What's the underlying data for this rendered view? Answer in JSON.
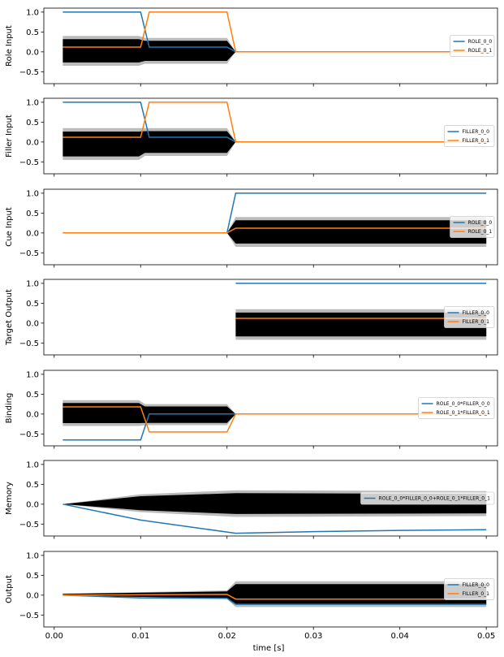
{
  "figure": {
    "xlabel": "time [s]"
  },
  "x_ticks": [
    "0.00",
    "0.01",
    "0.02",
    "0.03",
    "0.04",
    "0.05"
  ],
  "y_ticks": [
    "1.0",
    "0.5",
    "0.0",
    "−0.5"
  ],
  "colors": {
    "series0": "#1f77b4",
    "series1": "#ff7f0e",
    "noise": "#000000",
    "noise_edge": "#bbbbbb"
  },
  "chart_data": [
    {
      "type": "line",
      "ylabel": "Role Input",
      "xlim": [
        -0.0012,
        0.0513
      ],
      "ylim": [
        -0.8,
        1.1
      ],
      "legend": "right",
      "band": [
        {
          "x": 0.001,
          "lo": -0.35,
          "hi": 0.4
        },
        {
          "x": 0.0098,
          "lo": -0.35,
          "hi": 0.4
        },
        {
          "x": 0.0105,
          "lo": -0.3,
          "hi": 0.35
        },
        {
          "x": 0.02,
          "lo": -0.3,
          "hi": 0.35
        },
        {
          "x": 0.021,
          "lo": 0.0,
          "hi": 0.0
        },
        {
          "x": 0.05,
          "lo": 0.0,
          "hi": 0.0
        }
      ],
      "series": [
        {
          "name": "ROLE_0_0",
          "x": [
            0.001,
            0.01,
            0.011,
            0.02,
            0.021,
            0.05
          ],
          "y": [
            1.0,
            1.0,
            0.12,
            0.12,
            0.0,
            0.0
          ]
        },
        {
          "name": "ROLE_0_1",
          "x": [
            0.001,
            0.01,
            0.011,
            0.02,
            0.021,
            0.05
          ],
          "y": [
            0.12,
            0.12,
            1.0,
            1.0,
            0.0,
            0.0
          ]
        }
      ]
    },
    {
      "type": "line",
      "ylabel": "Filler Input",
      "xlim": [
        -0.0012,
        0.0513
      ],
      "ylim": [
        -0.8,
        1.1
      ],
      "legend": "right",
      "band": [
        {
          "x": 0.001,
          "lo": -0.45,
          "hi": 0.35
        },
        {
          "x": 0.0098,
          "lo": -0.45,
          "hi": 0.35
        },
        {
          "x": 0.0105,
          "lo": -0.35,
          "hi": 0.35
        },
        {
          "x": 0.02,
          "lo": -0.35,
          "hi": 0.35
        },
        {
          "x": 0.021,
          "lo": 0.0,
          "hi": 0.0
        },
        {
          "x": 0.05,
          "lo": 0.0,
          "hi": 0.0
        }
      ],
      "series": [
        {
          "name": "FILLER_0_0",
          "x": [
            0.001,
            0.01,
            0.011,
            0.02,
            0.021,
            0.05
          ],
          "y": [
            1.0,
            1.0,
            0.12,
            0.12,
            0.0,
            0.0
          ]
        },
        {
          "name": "FILLER_0_1",
          "x": [
            0.001,
            0.01,
            0.011,
            0.02,
            0.021,
            0.05
          ],
          "y": [
            0.12,
            0.12,
            1.0,
            1.0,
            0.0,
            0.0
          ]
        }
      ]
    },
    {
      "type": "line",
      "ylabel": "Cue Input",
      "xlim": [
        -0.0012,
        0.0513
      ],
      "ylim": [
        -0.8,
        1.1
      ],
      "legend": "right",
      "band": [
        {
          "x": 0.001,
          "lo": 0.0,
          "hi": 0.0
        },
        {
          "x": 0.02,
          "lo": 0.0,
          "hi": 0.0
        },
        {
          "x": 0.021,
          "lo": -0.35,
          "hi": 0.4
        },
        {
          "x": 0.05,
          "lo": -0.35,
          "hi": 0.4
        }
      ],
      "series": [
        {
          "name": "ROLE_0_0",
          "x": [
            0.001,
            0.02,
            0.021,
            0.05
          ],
          "y": [
            0.0,
            0.0,
            1.0,
            1.0
          ]
        },
        {
          "name": "ROLE_0_1",
          "x": [
            0.001,
            0.02,
            0.021,
            0.05
          ],
          "y": [
            0.0,
            0.0,
            0.12,
            0.12
          ]
        }
      ]
    },
    {
      "type": "line",
      "ylabel": "Target Output",
      "xlim": [
        -0.0012,
        0.0513
      ],
      "ylim": [
        -0.8,
        1.1
      ],
      "legend": "right",
      "band": [
        {
          "x": 0.021,
          "lo": -0.42,
          "hi": 0.35
        },
        {
          "x": 0.05,
          "lo": -0.42,
          "hi": 0.35
        }
      ],
      "series": [
        {
          "name": "FILLER_0_0",
          "x": [
            0.021,
            0.05
          ],
          "y": [
            1.0,
            1.0
          ]
        },
        {
          "name": "FILLER_0_1",
          "x": [
            0.021,
            0.05
          ],
          "y": [
            0.12,
            0.12
          ]
        }
      ]
    },
    {
      "type": "line",
      "ylabel": "Binding",
      "xlim": [
        -0.0012,
        0.0513
      ],
      "ylim": [
        -0.8,
        1.1
      ],
      "legend": "right",
      "band": [
        {
          "x": 0.001,
          "lo": -0.3,
          "hi": 0.35
        },
        {
          "x": 0.0098,
          "lo": -0.3,
          "hi": 0.35
        },
        {
          "x": 0.0105,
          "lo": -0.28,
          "hi": 0.25
        },
        {
          "x": 0.02,
          "lo": -0.28,
          "hi": 0.25
        },
        {
          "x": 0.021,
          "lo": 0.0,
          "hi": 0.0
        },
        {
          "x": 0.05,
          "lo": 0.0,
          "hi": 0.0
        }
      ],
      "series": [
        {
          "name": "ROLE_0_0*FILLER_0_0",
          "x": [
            0.001,
            0.01,
            0.011,
            0.02,
            0.021,
            0.05
          ],
          "y": [
            -0.65,
            -0.65,
            0.0,
            0.0,
            0.0,
            0.0
          ]
        },
        {
          "name": "ROLE_0_1*FILLER_0_1",
          "x": [
            0.001,
            0.01,
            0.011,
            0.02,
            0.021,
            0.05
          ],
          "y": [
            0.18,
            0.18,
            -0.45,
            -0.45,
            0.0,
            0.0
          ]
        }
      ]
    },
    {
      "type": "line",
      "ylabel": "Memory",
      "xlim": [
        -0.0012,
        0.0513
      ],
      "ylim": [
        -0.8,
        1.1
      ],
      "legend": "right",
      "band": [
        {
          "x": 0.001,
          "lo": 0.0,
          "hi": 0.0
        },
        {
          "x": 0.01,
          "lo": -0.2,
          "hi": 0.25
        },
        {
          "x": 0.021,
          "lo": -0.32,
          "hi": 0.35
        },
        {
          "x": 0.05,
          "lo": -0.3,
          "hi": 0.33
        }
      ],
      "series": [
        {
          "name": "ROLE_0_0*FILLER_0_0+ROLE_0_1*FILLER_0_1",
          "x": [
            0.001,
            0.01,
            0.021,
            0.03,
            0.04,
            0.05
          ],
          "y": [
            0.0,
            -0.4,
            -0.73,
            -0.69,
            -0.66,
            -0.64
          ]
        }
      ]
    },
    {
      "type": "line",
      "ylabel": "Output",
      "xlim": [
        -0.0012,
        0.0513
      ],
      "ylim": [
        -0.8,
        1.1
      ],
      "legend": "right",
      "band": [
        {
          "x": 0.001,
          "lo": -0.02,
          "hi": 0.04
        },
        {
          "x": 0.02,
          "lo": -0.1,
          "hi": 0.12
        },
        {
          "x": 0.021,
          "lo": -0.3,
          "hi": 0.35
        },
        {
          "x": 0.05,
          "lo": -0.3,
          "hi": 0.35
        }
      ],
      "series": [
        {
          "name": "FILLER_0_0",
          "x": [
            0.001,
            0.01,
            0.02,
            0.021,
            0.05
          ],
          "y": [
            0.0,
            -0.07,
            -0.08,
            -0.23,
            -0.23
          ]
        },
        {
          "name": "FILLER_0_1",
          "x": [
            0.001,
            0.01,
            0.02,
            0.021,
            0.05
          ],
          "y": [
            0.0,
            0.01,
            0.02,
            -0.1,
            -0.1
          ]
        }
      ]
    }
  ]
}
